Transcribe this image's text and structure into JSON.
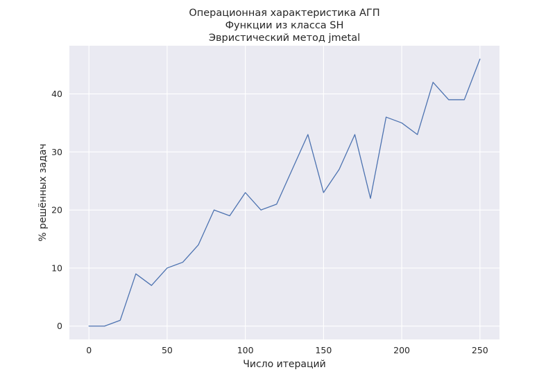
{
  "chart_data": {
    "type": "line",
    "title_lines": [
      "Операционная характеристика АГП",
      "Функции из класса SH",
      "Эвристический метод jmetal"
    ],
    "xlabel": "Число итераций",
    "ylabel": "% решённых задач",
    "x": [
      0,
      10,
      20,
      30,
      40,
      50,
      60,
      70,
      80,
      90,
      100,
      110,
      120,
      130,
      140,
      150,
      160,
      170,
      180,
      190,
      200,
      210,
      220,
      230,
      240,
      250
    ],
    "series": [
      {
        "values": [
          0,
          0,
          1,
          9,
          7,
          10,
          11,
          14,
          20,
          19,
          23,
          20,
          21,
          27,
          33,
          23,
          27,
          33,
          22,
          36,
          35,
          33,
          42,
          39,
          39,
          46
        ],
        "color": "#4c72b0"
      }
    ],
    "xticks": [
      0,
      50,
      100,
      150,
      200,
      250
    ],
    "yticks": [
      0,
      10,
      20,
      30,
      40
    ],
    "xlim": [
      -12.5,
      262.5
    ],
    "ylim": [
      -2.3,
      48.3
    ],
    "grid": true,
    "style": {
      "background": "#eaeaf2",
      "grid_color": "#ffffff"
    }
  }
}
